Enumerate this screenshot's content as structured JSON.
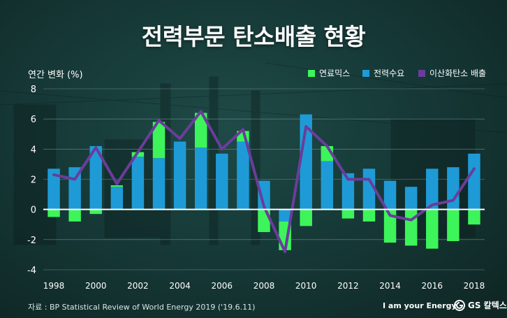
{
  "page": {
    "title": "전력부문 탄소배출 현황",
    "source": "자료 : BP Statistical Review of World Energy 2019 ('19.6.11)",
    "brand_slogan": "I am your Energy",
    "logo_text": "GS 칼텍스"
  },
  "colors": {
    "fuel_mix": "#3df55a",
    "power_demand": "#1e9bd7",
    "emissions": "#6a3d9a",
    "axis": "#ffffff",
    "grid": "#8fb0ad"
  },
  "chart_data": {
    "type": "bar",
    "stacked": true,
    "ylabel": "연간 변화 (%)",
    "ylim": [
      -4,
      8
    ],
    "yticks": [
      -4,
      -2,
      0,
      2,
      4,
      6,
      8
    ],
    "categories": [
      1998,
      1999,
      2000,
      2001,
      2002,
      2003,
      2004,
      2005,
      2006,
      2007,
      2008,
      2009,
      2010,
      2011,
      2012,
      2013,
      2014,
      2015,
      2016,
      2017,
      2018
    ],
    "xtick_labels": [
      "1998",
      "2000",
      "2002",
      "2004",
      "2006",
      "2008",
      "2010",
      "2012",
      "2014",
      "2016",
      "2018"
    ],
    "series": [
      {
        "name": "연료믹스",
        "kind": "bar",
        "values": [
          -0.5,
          -0.8,
          -0.3,
          0.1,
          0.3,
          2.4,
          0.0,
          2.3,
          0.0,
          0.7,
          -1.5,
          -1.9,
          -1.1,
          1.0,
          -0.6,
          -0.8,
          -2.2,
          -2.4,
          -2.6,
          -2.1,
          -1.0
        ]
      },
      {
        "name": "전력수요",
        "kind": "bar",
        "values": [
          2.7,
          2.8,
          4.2,
          1.5,
          3.5,
          3.4,
          4.5,
          4.1,
          3.7,
          4.5,
          1.9,
          -0.8,
          6.3,
          3.2,
          2.4,
          2.7,
          1.9,
          1.5,
          2.7,
          2.8,
          3.7
        ]
      },
      {
        "name": "이산화탄소 배출",
        "kind": "line",
        "values": [
          2.3,
          2.0,
          4.1,
          1.7,
          3.8,
          5.9,
          4.7,
          6.5,
          4.0,
          5.3,
          0.2,
          -2.8,
          5.5,
          4.2,
          2.0,
          2.0,
          -0.4,
          -0.7,
          0.3,
          0.6,
          2.7
        ]
      }
    ],
    "legend_position": "top-right",
    "grid": true
  }
}
